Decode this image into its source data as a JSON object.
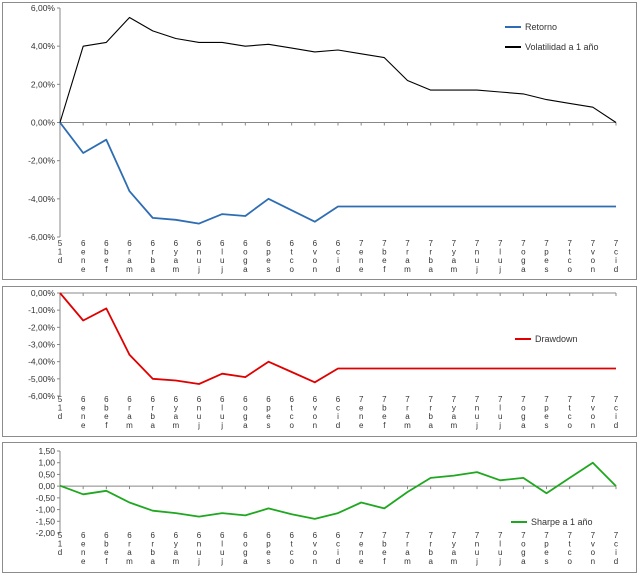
{
  "x_labels": [
    [
      "5",
      "1",
      "d"
    ],
    [
      "6",
      "e",
      "n",
      "e"
    ],
    [
      "6",
      "b",
      "e",
      "f"
    ],
    [
      "6",
      "r",
      "a",
      "m"
    ],
    [
      "6",
      "r",
      "b",
      "a"
    ],
    [
      "6",
      "y",
      "a",
      "m"
    ],
    [
      "6",
      "n",
      "u",
      "j"
    ],
    [
      "6",
      "l",
      "u",
      "j"
    ],
    [
      "6",
      "o",
      "g",
      "a"
    ],
    [
      "6",
      "p",
      "e",
      "s"
    ],
    [
      "6",
      "t",
      "c",
      "o"
    ],
    [
      "6",
      "v",
      "o",
      "n"
    ],
    [
      "6",
      "c",
      "i",
      "d"
    ],
    [
      "7",
      "e",
      "n",
      "e"
    ],
    [
      "7",
      "b",
      "e",
      "f"
    ],
    [
      "7",
      "r",
      "a",
      "m"
    ],
    [
      "7",
      "r",
      "b",
      "a"
    ],
    [
      "7",
      "y",
      "a",
      "m"
    ],
    [
      "7",
      "n",
      "u",
      "j"
    ],
    [
      "7",
      "l",
      "u",
      "j"
    ],
    [
      "7",
      "o",
      "g",
      "a"
    ],
    [
      "7",
      "p",
      "e",
      "s"
    ],
    [
      "7",
      "t",
      "c",
      "o"
    ],
    [
      "7",
      "v",
      "o",
      "n"
    ],
    [
      "7",
      "c",
      "i",
      "d"
    ]
  ],
  "chart_data": [
    {
      "type": "line",
      "y_ticks": [
        "6,00%",
        "4,00%",
        "2,00%",
        "0,00%",
        "-2,00%",
        "-4,00%",
        "-6,00%"
      ],
      "ylim": [
        -6,
        6
      ],
      "legend_position": "top-right",
      "series": [
        {
          "name": "Retorno",
          "color": "#2e6db4",
          "values": [
            0,
            -1.6,
            -0.9,
            -3.6,
            -5.0,
            -5.1,
            -5.3,
            -4.8,
            -4.9,
            -4.0,
            -4.6,
            -5.2,
            -4.4,
            -4.4,
            -4.4,
            -4.4,
            -4.4,
            -4.4,
            -4.4,
            -4.4,
            -4.4,
            -4.4,
            -4.4,
            -4.4,
            -4.4
          ]
        },
        {
          "name": "Volatilidad a 1 año",
          "color": "#000000",
          "values": [
            0,
            4.0,
            4.2,
            5.5,
            4.8,
            4.4,
            4.2,
            4.2,
            4.0,
            4.1,
            3.9,
            3.7,
            3.8,
            3.6,
            3.4,
            2.2,
            1.7,
            1.7,
            1.7,
            1.6,
            1.5,
            1.2,
            1.0,
            0.8,
            0
          ]
        }
      ]
    },
    {
      "type": "line",
      "y_ticks": [
        "0,00%",
        "-1,00%",
        "-2,00%",
        "-3,00%",
        "-4,00%",
        "-5,00%",
        "-6,00%"
      ],
      "ylim": [
        -6,
        0
      ],
      "legend_position": "right",
      "series": [
        {
          "name": "Drawdown",
          "color": "#e00000",
          "values": [
            0,
            -1.6,
            -0.9,
            -3.6,
            -5.0,
            -5.1,
            -5.3,
            -4.7,
            -4.9,
            -4.0,
            -4.6,
            -5.2,
            -4.4,
            -4.4,
            -4.4,
            -4.4,
            -4.4,
            -4.4,
            -4.4,
            -4.4,
            -4.4,
            -4.4,
            -4.4,
            -4.4,
            -4.4
          ]
        }
      ]
    },
    {
      "type": "line",
      "y_ticks": [
        "1,50",
        "1,00",
        "0,50",
        "0,00",
        "-0,50",
        "-1,00",
        "-1,50",
        "-2,00"
      ],
      "ylim": [
        -2,
        1.5
      ],
      "legend_position": "bottom-right",
      "series": [
        {
          "name": "Sharpe a 1 año",
          "color": "#1fa81f",
          "values": [
            0.02,
            -0.35,
            -0.2,
            -0.7,
            -1.05,
            -1.15,
            -1.3,
            -1.15,
            -1.25,
            -0.95,
            -1.2,
            -1.4,
            -1.15,
            -0.7,
            -0.95,
            -0.25,
            0.35,
            0.45,
            0.6,
            0.25,
            0.35,
            -0.3,
            0.35,
            1.0,
            0.0
          ]
        }
      ]
    }
  ]
}
